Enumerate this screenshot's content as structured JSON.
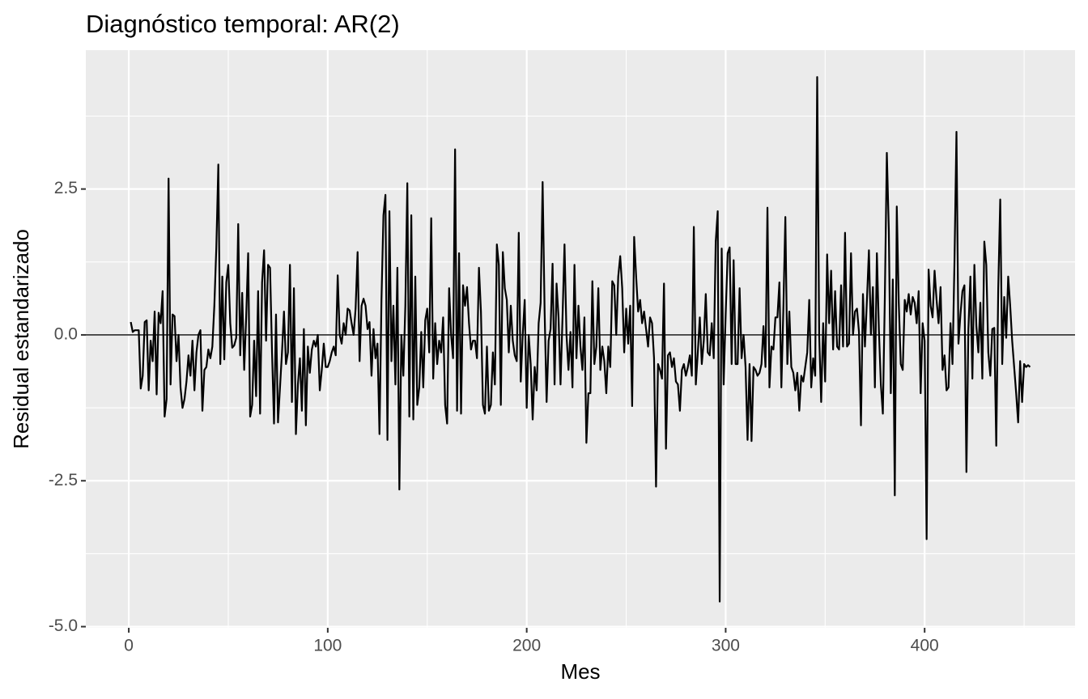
{
  "chart_data": {
    "type": "line",
    "title": "Diagnóstico temporal: AR(2)",
    "x_label": "Mes",
    "y_label": "Residual estandarizado",
    "color": "#000000",
    "hline": 0,
    "grid": true,
    "xlim": [
      -21.6,
      475.6
    ],
    "xticks": [
      0,
      100,
      200,
      300,
      400
    ],
    "ylim": [
      -5.02,
      4.88
    ],
    "yticks": [
      {
        "value": -5,
        "label": "-5.0"
      },
      -2.5,
      {
        "value": 0,
        "label": "0.0"
      },
      2.5
    ],
    "x": [
      1,
      2,
      3,
      4,
      5,
      6,
      7,
      8,
      9,
      10,
      11,
      12,
      13,
      14,
      15,
      16,
      17,
      18,
      19,
      20,
      21,
      22,
      23,
      24,
      25,
      26,
      27,
      28,
      29,
      30,
      31,
      32,
      33,
      34,
      35,
      36,
      37,
      38,
      39,
      40,
      41,
      42,
      43,
      44,
      45,
      46,
      47,
      48,
      49,
      50,
      51,
      52,
      53,
      54,
      55,
      56,
      57,
      58,
      59,
      60,
      61,
      62,
      63,
      64,
      65,
      66,
      67,
      68,
      69,
      70,
      71,
      72,
      73,
      74,
      75,
      76,
      77,
      78,
      79,
      80,
      81,
      82,
      83,
      84,
      85,
      86,
      87,
      88,
      89,
      90,
      91,
      92,
      93,
      94,
      95,
      96,
      97,
      98,
      99,
      100,
      101,
      102,
      103,
      104,
      105,
      106,
      107,
      108,
      109,
      110,
      111,
      112,
      113,
      114,
      115,
      116,
      117,
      118,
      119,
      120,
      121,
      122,
      123,
      124,
      125,
      126,
      127,
      128,
      129,
      130,
      131,
      132,
      133,
      134,
      135,
      136,
      137,
      138,
      139,
      140,
      141,
      142,
      143,
      144,
      145,
      146,
      147,
      148,
      149,
      150,
      151,
      152,
      153,
      154,
      155,
      156,
      157,
      158,
      159,
      160,
      161,
      162,
      163,
      164,
      165,
      166,
      167,
      168,
      169,
      170,
      171,
      172,
      173,
      174,
      175,
      176,
      177,
      178,
      179,
      180,
      181,
      182,
      183,
      184,
      185,
      186,
      187,
      188,
      189,
      190,
      191,
      192,
      193,
      194,
      195,
      196,
      197,
      198,
      199,
      200,
      201,
      202,
      203,
      204,
      205,
      206,
      207,
      208,
      209,
      210,
      211,
      212,
      213,
      214,
      215,
      216,
      217,
      218,
      219,
      220,
      221,
      222,
      223,
      224,
      225,
      226,
      227,
      228,
      229,
      230,
      231,
      232,
      233,
      234,
      235,
      236,
      237,
      238,
      239,
      240,
      241,
      242,
      243,
      244,
      245,
      246,
      247,
      248,
      249,
      250,
      251,
      252,
      253,
      254,
      255,
      256,
      257,
      258,
      259,
      260,
      261,
      262,
      263,
      264,
      265,
      266,
      267,
      268,
      269,
      270,
      271,
      272,
      273,
      274,
      275,
      276,
      277,
      278,
      279,
      280,
      281,
      282,
      283,
      284,
      285,
      286,
      287,
      288,
      289,
      290,
      291,
      292,
      293,
      294,
      295,
      296,
      297,
      298,
      299,
      300,
      301,
      302,
      303,
      304,
      305,
      306,
      307,
      308,
      309,
      310,
      311,
      312,
      313,
      314,
      315,
      316,
      317,
      318,
      319,
      320,
      321,
      322,
      323,
      324,
      325,
      326,
      327,
      328,
      329,
      330,
      331,
      332,
      333,
      334,
      335,
      336,
      337,
      338,
      339,
      340,
      341,
      342,
      343,
      344,
      345,
      346,
      347,
      348,
      349,
      350,
      351,
      352,
      353,
      354,
      355,
      356,
      357,
      358,
      359,
      360,
      361,
      362,
      363,
      364,
      365,
      366,
      367,
      368,
      369,
      370,
      371,
      372,
      373,
      374,
      375,
      376,
      377,
      378,
      379,
      380,
      381,
      382,
      383,
      384,
      385,
      386,
      387,
      388,
      389,
      390,
      391,
      392,
      393,
      394,
      395,
      396,
      397,
      398,
      399,
      400,
      401,
      402,
      403,
      404,
      405,
      406,
      407,
      408,
      409,
      410,
      411,
      412,
      413,
      414,
      415,
      416,
      417,
      418,
      419,
      420,
      421,
      422,
      423,
      424,
      425,
      426,
      427,
      428,
      429,
      430,
      431,
      432,
      433,
      434,
      435,
      436,
      437,
      438,
      439,
      440,
      441,
      442,
      443,
      444,
      445,
      446,
      447,
      448,
      449,
      450,
      451,
      452,
      453
    ],
    "values": [
      0.22,
      0.05,
      0.08,
      0.08,
      0.08,
      -0.92,
      -0.7,
      0.22,
      0.25,
      -0.95,
      -0.1,
      -0.45,
      0.4,
      -1.02,
      0.38,
      0.2,
      0.75,
      -1.4,
      -1.1,
      2.68,
      -0.85,
      0.35,
      0.32,
      -0.45,
      0.0,
      -0.9,
      -1.25,
      -1.1,
      -0.8,
      -0.35,
      -0.7,
      -0.1,
      -0.95,
      -0.3,
      0.0,
      0.08,
      -1.3,
      -0.6,
      -0.55,
      -0.25,
      -0.4,
      -0.2,
      0.5,
      1.5,
      2.92,
      -0.5,
      1.0,
      -0.42,
      0.9,
      1.2,
      0.2,
      -0.22,
      -0.18,
      -0.05,
      1.9,
      -0.35,
      0.72,
      -0.6,
      0.3,
      1.4,
      -1.4,
      -1.2,
      -0.1,
      -1.05,
      0.75,
      -1.35,
      0.9,
      1.45,
      -0.1,
      1.2,
      1.15,
      -0.3,
      -1.52,
      0.35,
      -1.5,
      -0.9,
      -0.3,
      0.4,
      -0.5,
      -0.3,
      1.2,
      -1.15,
      0.8,
      -1.7,
      -0.85,
      -0.4,
      -1.3,
      0.1,
      -1.55,
      -0.2,
      -0.65,
      -0.25,
      -0.1,
      -0.2,
      0.0,
      -0.95,
      -0.6,
      -0.15,
      -0.55,
      -0.55,
      -0.45,
      -0.3,
      -0.2,
      -0.35,
      1.02,
      0.0,
      -0.15,
      0.2,
      0.0,
      0.45,
      0.42,
      0.2,
      0.0,
      0.45,
      1.42,
      -0.45,
      0.5,
      0.62,
      0.5,
      0.1,
      0.22,
      -0.7,
      0.1,
      -0.4,
      -0.15,
      -1.7,
      0.6,
      2.05,
      2.4,
      -1.8,
      2.12,
      -0.45,
      0.5,
      -0.85,
      1.15,
      -2.65,
      0.0,
      -0.7,
      0.5,
      2.6,
      -1.4,
      2.05,
      -1.45,
      1.0,
      -1.2,
      -0.9,
      0.05,
      -0.9,
      0.25,
      0.45,
      -0.3,
      2.0,
      -0.75,
      0.2,
      -0.5,
      -0.1,
      -0.3,
      0.3,
      -1.2,
      -1.52,
      0.8,
      0.0,
      -0.4,
      3.18,
      -1.3,
      1.4,
      -1.35,
      0.85,
      0.5,
      0.82,
      0.2,
      -0.25,
      -0.1,
      -0.1,
      -0.4,
      1.15,
      0.4,
      -1.2,
      -1.35,
      -0.2,
      -1.3,
      -1.2,
      -0.3,
      -0.85,
      1.55,
      1.2,
      -1.2,
      1.42,
      0.8,
      0.6,
      -0.3,
      0.5,
      -0.1,
      -0.35,
      -0.45,
      1.75,
      -0.8,
      0.0,
      0.6,
      -1.25,
      0.0,
      -0.5,
      -1.45,
      -0.55,
      -0.95,
      0.2,
      0.55,
      2.62,
      0.4,
      -1.15,
      -0.1,
      0.1,
      1.22,
      -0.85,
      0.88,
      0.3,
      -0.85,
      0.3,
      1.55,
      0.0,
      -0.6,
      0.05,
      -0.9,
      1.2,
      -0.4,
      0.5,
      -0.2,
      -0.6,
      0.3,
      -1.85,
      -1.0,
      -1.0,
      0.92,
      -0.5,
      -0.2,
      0.8,
      -0.6,
      -0.2,
      -0.45,
      -1.0,
      -0.2,
      -0.55,
      0.92,
      0.85,
      0.0,
      1.0,
      1.35,
      0.8,
      -0.3,
      0.45,
      -0.15,
      0.5,
      -1.22,
      1.68,
      1.0,
      0.4,
      0.6,
      0.2,
      0.4,
      0.1,
      -0.2,
      0.3,
      0.2,
      -0.4,
      -2.6,
      -0.5,
      -0.6,
      -0.75,
      0.88,
      -1.95,
      -0.35,
      -0.3,
      -0.55,
      -0.4,
      -0.8,
      -0.85,
      -1.3,
      -0.6,
      -0.5,
      -0.7,
      -0.55,
      -0.35,
      -0.7,
      1.85,
      -0.85,
      -0.3,
      0.3,
      -0.5,
      -0.1,
      0.7,
      -0.3,
      -0.35,
      0.2,
      -0.4,
      1.6,
      2.12,
      -4.57,
      1.48,
      -0.85,
      0.35,
      1.4,
      1.5,
      -0.5,
      1.28,
      -0.5,
      -0.5,
      0.8,
      -0.4,
      0.0,
      -0.55,
      -1.8,
      -0.5,
      -1.82,
      -0.55,
      -0.6,
      -0.7,
      -0.65,
      -0.5,
      0.15,
      -0.55,
      2.18,
      -0.9,
      -0.2,
      -0.25,
      0.3,
      0.3,
      0.9,
      -0.9,
      0.45,
      2.02,
      -0.5,
      0.4,
      -0.55,
      -0.65,
      -0.95,
      -0.65,
      -1.3,
      -0.7,
      -0.8,
      -0.55,
      -0.3,
      0.6,
      -0.9,
      -0.4,
      -0.7,
      4.42,
      0.0,
      -1.15,
      0.2,
      -0.8,
      1.38,
      0.2,
      1.1,
      -0.25,
      0.75,
      -0.2,
      -0.25,
      0.85,
      -0.2,
      1.75,
      -0.2,
      -0.15,
      1.4,
      0.0,
      0.4,
      0.45,
      0.05,
      -1.55,
      0.7,
      -0.2,
      0.6,
      1.45,
      0.0,
      0.82,
      -0.9,
      1.4,
      0.1,
      -0.85,
      -1.35,
      0.65,
      3.12,
      1.8,
      -1.0,
      0.95,
      -2.75,
      2.2,
      0.55,
      -0.5,
      -0.6,
      0.6,
      0.4,
      0.7,
      0.35,
      0.65,
      0.55,
      0.2,
      0.75,
      -1.0,
      0.2,
      -0.1,
      -3.5,
      1.12,
      0.5,
      0.3,
      1.1,
      0.6,
      0.2,
      0.82,
      -0.6,
      -0.35,
      -0.95,
      -0.9,
      0.2,
      -0.5,
      1.25,
      3.48,
      -0.15,
      0.35,
      0.75,
      0.85,
      -2.35,
      0.1,
      1.0,
      -0.75,
      1.2,
      0.15,
      -0.3,
      0.55,
      -0.75,
      1.6,
      1.2,
      -0.3,
      -0.7,
      0.1,
      0.12,
      -1.9,
      0.8,
      2.32,
      -0.5,
      0.65,
      -0.05,
      1.0,
      0.5,
      -0.1,
      -0.55,
      -1.0,
      -1.5,
      -0.45,
      -1.15,
      -0.5,
      -0.55,
      -0.52,
      -0.55
    ]
  }
}
